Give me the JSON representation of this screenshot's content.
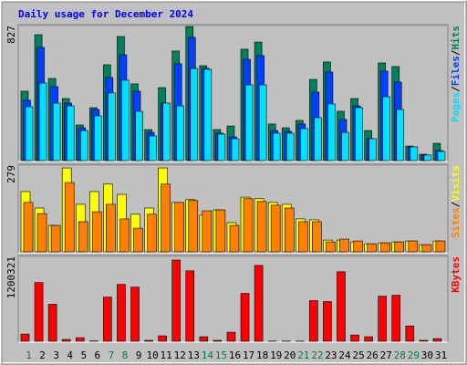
{
  "title": "Daily usage for December 2024",
  "legend_separator": "/",
  "chart_data": [
    {
      "type": "bar",
      "ylim": [
        0,
        827
      ],
      "yticks": [
        827
      ],
      "series": [
        {
          "name": "Hits",
          "color": "#00805c",
          "values": [
            425,
            771,
            503,
            380,
            218,
            324,
            587,
            760,
            470,
            190,
            447,
            671,
            821,
            581,
            190,
            212,
            682,
            726,
            224,
            201,
            246,
            497,
            604,
            302,
            380,
            184,
            598,
            576,
            89,
            39,
            106
          ]
        },
        {
          "name": "Files",
          "color": "#0040ff",
          "values": [
            369,
            693,
            453,
            352,
            201,
            313,
            509,
            648,
            425,
            173,
            352,
            593,
            755,
            564,
            168,
            145,
            620,
            643,
            184,
            179,
            224,
            419,
            542,
            252,
            335,
            134,
            548,
            481,
            84,
            34,
            61
          ]
        },
        {
          "name": "Pages",
          "color": "#00e0ff",
          "values": [
            330,
            475,
            352,
            335,
            184,
            274,
            414,
            492,
            302,
            151,
            352,
            335,
            564,
            559,
            162,
            134,
            464,
            464,
            168,
            168,
            196,
            263,
            347,
            173,
            324,
            134,
            391,
            313,
            84,
            34,
            56
          ]
        }
      ]
    },
    {
      "type": "bar",
      "ylim": [
        0,
        279
      ],
      "yticks": [
        279
      ],
      "series": [
        {
          "name": "Visits",
          "color": "#ffff00",
          "values": [
            194,
            141,
            85,
            270,
            153,
            194,
            218,
            185,
            121,
            141,
            270,
            159,
            168,
            118,
            135,
            94,
            176,
            171,
            159,
            153,
            106,
            103,
            38,
            38,
            32,
            26,
            29,
            32,
            35,
            23,
            35
          ]
        },
        {
          "name": "Sites",
          "color": "#ff8000",
          "values": [
            159,
            123,
            85,
            223,
            97,
            129,
            153,
            106,
            76,
            121,
            218,
            159,
            165,
            132,
            135,
            85,
            171,
            162,
            150,
            141,
            97,
            97,
            32,
            41,
            35,
            26,
            29,
            32,
            35,
            23,
            35
          ]
        }
      ]
    },
    {
      "type": "bar",
      "ylim": [
        0,
        1200321
      ],
      "yticks": [
        1200321
      ],
      "categories": [
        "1",
        "2",
        "3",
        "4",
        "5",
        "6",
        "7",
        "8",
        "9",
        "10",
        "11",
        "12",
        "13",
        "14",
        "15",
        "16",
        "17",
        "18",
        "19",
        "20",
        "21",
        "22",
        "23",
        "24",
        "25",
        "26",
        "27",
        "28",
        "29",
        "30",
        "31"
      ],
      "category_colors": [
        "#008040",
        "#000000",
        "#000000",
        "#000000",
        "#000000",
        "#000000",
        "#008040",
        "#008040",
        "#000000",
        "#000000",
        "#000000",
        "#000000",
        "#000000",
        "#008040",
        "#008040",
        "#000000",
        "#000000",
        "#000000",
        "#000000",
        "#000000",
        "#008040",
        "#008040",
        "#000000",
        "#000000",
        "#000000",
        "#000000",
        "#000000",
        "#008040",
        "#008040",
        "#000000",
        "#000000"
      ],
      "series": [
        {
          "name": "KBytes",
          "color": "#ff0000",
          "values": [
            102000,
            830000,
            523000,
            26000,
            51000,
            5000,
            625000,
            804000,
            766000,
            13000,
            77000,
            1149000,
            996000,
            64000,
            13000,
            128000,
            677000,
            1073000,
            3000,
            3000,
            3000,
            575000,
            562000,
            983000,
            89000,
            64000,
            638000,
            651000,
            217000,
            13000,
            38000
          ]
        }
      ]
    }
  ]
}
